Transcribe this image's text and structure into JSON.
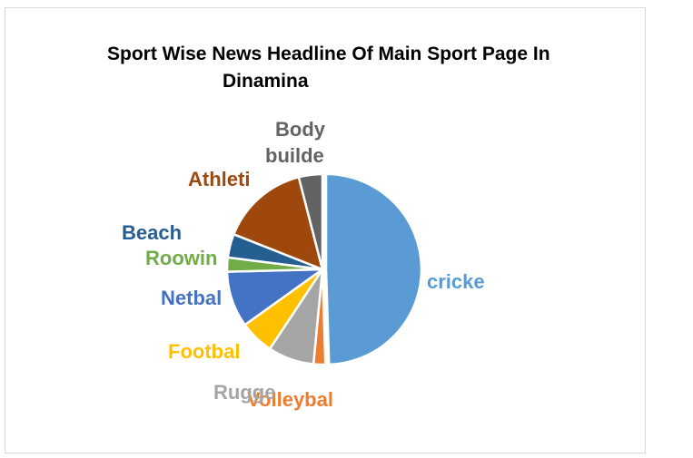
{
  "chart_data": {
    "type": "pie",
    "title_line1": "Sport Wise News Headline Of Main Sport Page In",
    "title_line2": "Dinamina",
    "slices": [
      {
        "label": "cricke",
        "value": 49.5,
        "color": "#5b9bd5",
        "label_line2": ""
      },
      {
        "label": "Volleybal",
        "value": 2.0,
        "color": "#ed7d31",
        "label_line2": ""
      },
      {
        "label": "Rugge",
        "value": 7.8,
        "color": "#a5a5a5",
        "label_line2": ""
      },
      {
        "label": "Footbal",
        "value": 5.8,
        "color": "#ffc000",
        "label_line2": ""
      },
      {
        "label": "Netbal",
        "value": 9.5,
        "color": "#4472c4",
        "label_line2": ""
      },
      {
        "label": "Roowin",
        "value": 2.4,
        "color": "#70ad47",
        "label_line2": ""
      },
      {
        "label": "Beach",
        "value": 4.0,
        "color": "#255e91",
        "label_line2": ""
      },
      {
        "label": "Athleti",
        "value": 15.0,
        "color": "#9e480e",
        "label_line2": ""
      },
      {
        "label": "Body",
        "value": 4.0,
        "color": "#636363",
        "label_line2": "builde"
      }
    ]
  }
}
